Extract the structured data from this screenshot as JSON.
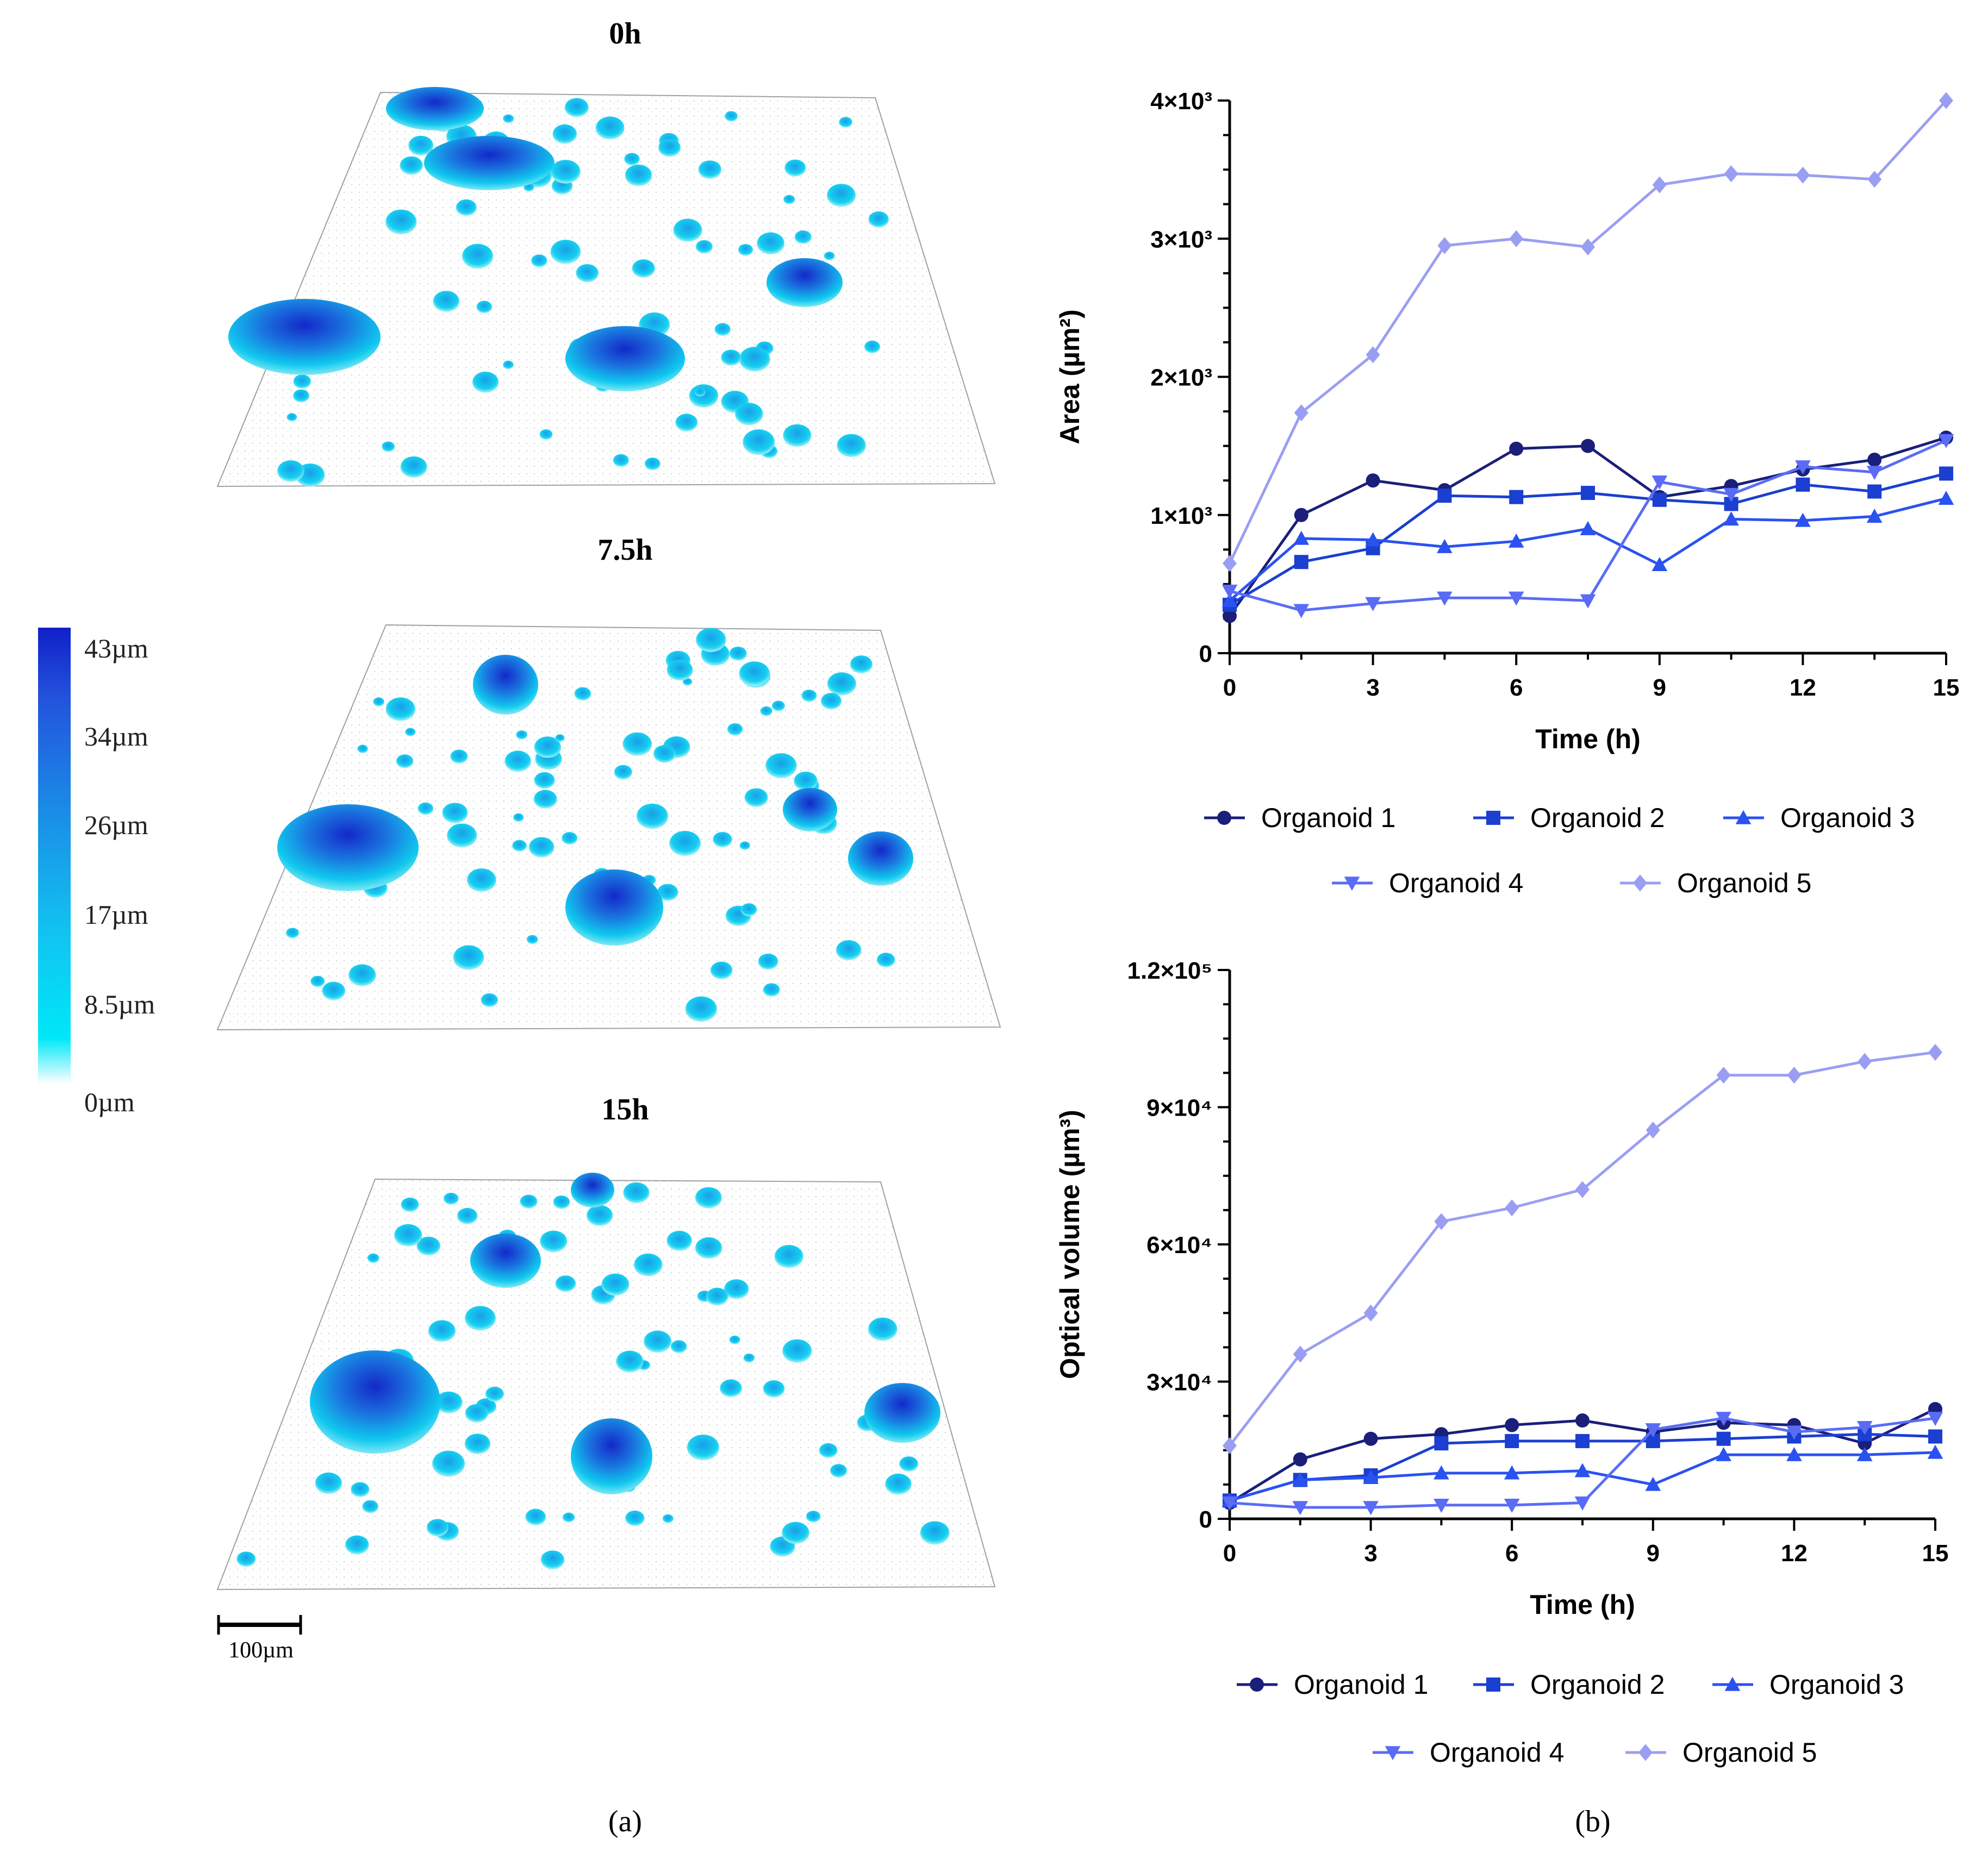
{
  "panel_a": {
    "caption": "(a)",
    "timepoints": [
      "0h",
      "7.5h",
      "15h"
    ],
    "colorbar": {
      "labels": [
        "43µm",
        "34µm",
        "26µm",
        "17µm",
        "8.5µm",
        "0µm"
      ],
      "stops": [
        "#ffffff",
        "#00e5f5",
        "#1ab6ee",
        "#1a86e6",
        "#2255dd",
        "#1424cc"
      ]
    },
    "scalebar_label": "100µm"
  },
  "panel_b": {
    "caption": "(b)"
  },
  "colors": {
    "organoid_1": "#1a1f7a",
    "organoid_2": "#1a3fd1",
    "organoid_3": "#2a52f0",
    "organoid_4": "#5a6cf5",
    "organoid_5": "#9a9ef2"
  },
  "chart_data": [
    {
      "type": "line",
      "title": "",
      "xlabel": "Time (h)",
      "ylabel": "Area (µm²)",
      "xlim": [
        0,
        15
      ],
      "ylim": [
        0,
        4000
      ],
      "x_ticks": [
        "0",
        "3",
        "6",
        "9",
        "12",
        "15"
      ],
      "y_ticks": [
        "0",
        "1×10³",
        "2×10³",
        "3×10³",
        "4×10³"
      ],
      "x": [
        0,
        1.5,
        3,
        4.5,
        6,
        7.5,
        9,
        10.5,
        12,
        13.5,
        15
      ],
      "series": [
        {
          "name": "Organoid 1",
          "marker": "circle",
          "values": [
            270,
            1000,
            1250,
            1180,
            1480,
            1500,
            1130,
            1210,
            1330,
            1400,
            1560
          ]
        },
        {
          "name": "Organoid 2",
          "marker": "square",
          "values": [
            350,
            660,
            760,
            1140,
            1130,
            1160,
            1110,
            1080,
            1220,
            1170,
            1300
          ]
        },
        {
          "name": "Organoid 3",
          "marker": "triangle-up",
          "values": [
            380,
            830,
            820,
            770,
            810,
            900,
            640,
            970,
            960,
            990,
            1120
          ]
        },
        {
          "name": "Organoid 4",
          "marker": "triangle-down",
          "values": [
            450,
            310,
            360,
            400,
            400,
            380,
            1240,
            1150,
            1350,
            1310,
            1540
          ]
        },
        {
          "name": "Organoid 5",
          "marker": "diamond",
          "values": [
            650,
            1740,
            2160,
            2950,
            3000,
            2940,
            3390,
            3470,
            3460,
            3430,
            4000
          ]
        }
      ],
      "legend": [
        "Organoid 1",
        "Organoid 2",
        "Organoid 3",
        "Organoid 4",
        "Organoid 5"
      ],
      "legend_position": "bottom"
    },
    {
      "type": "line",
      "title": "",
      "xlabel": "Time (h)",
      "ylabel": "Optical volume (µm³)",
      "xlim": [
        0,
        15
      ],
      "ylim": [
        0,
        120000
      ],
      "x_ticks": [
        "0",
        "3",
        "6",
        "9",
        "12",
        "15"
      ],
      "y_ticks": [
        "0",
        "3×10⁴",
        "6×10⁴",
        "9×10⁴",
        "1.2×10⁵"
      ],
      "x": [
        0,
        1.5,
        3,
        4.5,
        6,
        7.5,
        9,
        10.5,
        12,
        13.5,
        15
      ],
      "series": [
        {
          "name": "Organoid 1",
          "marker": "circle",
          "values": [
            3500,
            13000,
            17500,
            18500,
            20500,
            21500,
            19000,
            21000,
            20500,
            16500,
            24000
          ]
        },
        {
          "name": "Organoid 2",
          "marker": "square",
          "values": [
            4000,
            8500,
            9500,
            16500,
            17000,
            17000,
            17000,
            17500,
            18000,
            18500,
            18000
          ]
        },
        {
          "name": "Organoid 3",
          "marker": "triangle-up",
          "values": [
            4000,
            8500,
            9000,
            10000,
            10000,
            10500,
            7500,
            14000,
            14000,
            14000,
            14500
          ]
        },
        {
          "name": "Organoid 4",
          "marker": "triangle-down",
          "values": [
            3500,
            2500,
            2500,
            3000,
            3000,
            3500,
            19500,
            22000,
            19000,
            20000,
            22000
          ]
        },
        {
          "name": "Organoid 5",
          "marker": "diamond",
          "values": [
            16000,
            36000,
            45000,
            65000,
            68000,
            72000,
            85000,
            97000,
            97000,
            100000,
            102000
          ]
        }
      ],
      "legend": [
        "Organoid 1",
        "Organoid 2",
        "Organoid 3",
        "Organoid 4",
        "Organoid 5"
      ],
      "legend_position": "bottom"
    }
  ]
}
